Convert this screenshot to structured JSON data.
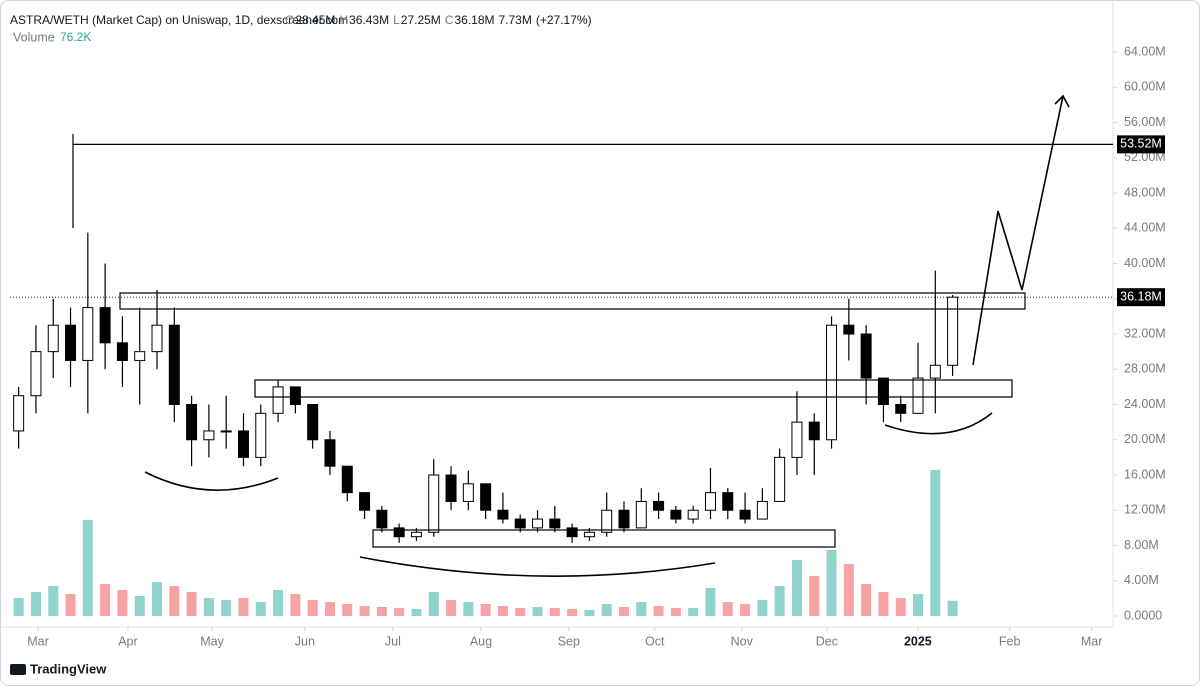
{
  "header": {
    "symbol": "ASTRA/WETH (Market Cap) on Uniswap, 1D, dexscreener.com",
    "ohlc": [
      {
        "key": "O",
        "value": 28.45,
        "label": "28.45M"
      },
      {
        "key": "H",
        "value": 36.43,
        "label": "36.43M"
      },
      {
        "key": "L",
        "value": 27.25,
        "label": "27.25M"
      },
      {
        "key": "C",
        "value": 36.18,
        "label": "36.18M"
      }
    ],
    "change": {
      "value": 7.73,
      "label": "7.73M"
    },
    "change_pct": {
      "value": 27.17,
      "label": "(+27.17%)"
    },
    "volume_title": "Volume",
    "volume_label": {
      "value": 76.2,
      "label": "76.2K"
    }
  },
  "brand": "TradingView",
  "chart_data": {
    "type": "candlestick",
    "up_color": "#ffffff",
    "down_color": "#000000",
    "open": [
      21,
      25,
      30,
      33,
      29,
      35,
      31,
      29,
      30,
      33,
      24,
      20,
      21,
      21,
      18,
      23,
      26,
      24,
      20,
      17,
      14,
      12,
      10,
      9,
      9.5,
      16,
      13,
      15,
      12,
      11,
      10,
      11,
      10,
      9,
      9.5,
      12,
      10,
      13,
      12,
      11,
      12,
      14,
      12,
      11,
      13,
      18,
      22,
      20,
      33,
      32,
      27,
      24,
      23,
      27,
      28.45
    ],
    "high": [
      26,
      33,
      36,
      35,
      43.5,
      40,
      34,
      35,
      37,
      35,
      25,
      24,
      25,
      23,
      24,
      26.8,
      26,
      24,
      21,
      17,
      14,
      12.5,
      10.5,
      10,
      17.8,
      17,
      16.5,
      15,
      14,
      11.5,
      12,
      12.5,
      10.5,
      10,
      14,
      13,
      14.5,
      14,
      12.5,
      12.5,
      16.8,
      14.5,
      14,
      14.5,
      19,
      25.5,
      23,
      34,
      36,
      33,
      27,
      25,
      31,
      39.2,
      36.43
    ],
    "low": [
      19,
      23,
      27,
      26,
      23,
      28,
      26,
      24,
      28,
      22,
      17,
      18,
      19,
      17,
      17,
      22,
      23,
      19,
      16,
      13,
      11,
      9.5,
      8.3,
      8.5,
      9,
      12,
      12,
      11,
      10.5,
      9.5,
      9.5,
      9.5,
      8.3,
      8.5,
      9,
      9.5,
      10,
      11,
      10.5,
      10.5,
      11,
      11,
      10.5,
      11,
      13,
      16,
      16,
      19,
      29,
      24,
      22,
      22,
      23,
      23,
      27.25
    ],
    "close": [
      25,
      30,
      33,
      29,
      35,
      31,
      29,
      30,
      33,
      24,
      20,
      21,
      21,
      18,
      23,
      26,
      24,
      20,
      17,
      14,
      12,
      10,
      9,
      9.5,
      16,
      13,
      15,
      12,
      11,
      10,
      11,
      10,
      9,
      9.5,
      12,
      10,
      13,
      12,
      11,
      12,
      14,
      12,
      11,
      13,
      18,
      22,
      20,
      33,
      32,
      27,
      24,
      23,
      27,
      28.45,
      36.18
    ],
    "volume": {
      "up_color": "#8fd3cc",
      "down_color": "#f5a3a3",
      "values": [
        90,
        120,
        150,
        110,
        480,
        160,
        130,
        100,
        170,
        150,
        120,
        90,
        80,
        90,
        70,
        130,
        110,
        80,
        70,
        60,
        50,
        45,
        40,
        35,
        120,
        80,
        70,
        60,
        50,
        40,
        45,
        40,
        35,
        30,
        60,
        45,
        70,
        50,
        40,
        40,
        140,
        70,
        60,
        80,
        150,
        280,
        200,
        330,
        260,
        160,
        120,
        90,
        110,
        730,
        76.2
      ]
    },
    "xlim": [
      0,
      63.6
    ],
    "ylim": [
      0,
      66.5
    ],
    "xticks": [
      {
        "value": 1.62,
        "label": "Mar"
      },
      {
        "value": 6.82,
        "label": "Apr"
      },
      {
        "value": 11.68,
        "label": "May"
      },
      {
        "value": 17.05,
        "label": "Jun"
      },
      {
        "value": 22.14,
        "label": "Jul"
      },
      {
        "value": 27.23,
        "label": "Aug"
      },
      {
        "value": 32.31,
        "label": "Sep"
      },
      {
        "value": 37.28,
        "label": "Oct"
      },
      {
        "value": 42.31,
        "label": "Nov"
      },
      {
        "value": 47.23,
        "label": "Dec"
      },
      {
        "value": 52.49,
        "label": "2025"
      },
      {
        "value": 57.8,
        "label": "Feb"
      },
      {
        "value": 62.54,
        "label": "Mar"
      }
    ],
    "yticks": [
      {
        "value": 0,
        "label": "0.0000"
      },
      {
        "value": 4,
        "label": "4.00M"
      },
      {
        "value": 8,
        "label": "8.00M"
      },
      {
        "value": 12,
        "label": "12.00M"
      },
      {
        "value": 16,
        "label": "16.00M"
      },
      {
        "value": 20,
        "label": "20.00M"
      },
      {
        "value": 24,
        "label": "24.00M"
      },
      {
        "value": 28,
        "label": "28.00M"
      },
      {
        "value": 32,
        "label": "32.00M"
      },
      {
        "value": 36,
        "label": "36.00M"
      },
      {
        "value": 40,
        "label": "40.00M"
      },
      {
        "value": 44,
        "label": "44.00M"
      },
      {
        "value": 48,
        "label": "48.00M"
      },
      {
        "value": 52,
        "label": "52.00M"
      },
      {
        "value": 56,
        "label": "56.00M"
      },
      {
        "value": 60,
        "label": "60.00M"
      },
      {
        "value": 64,
        "label": "64.00M"
      }
    ],
    "price_lines": [
      {
        "value": 53.52,
        "label": "53.52M",
        "style": "solid"
      },
      {
        "value": 36.18,
        "label": "36.18M",
        "style": "dotted"
      }
    ]
  }
}
